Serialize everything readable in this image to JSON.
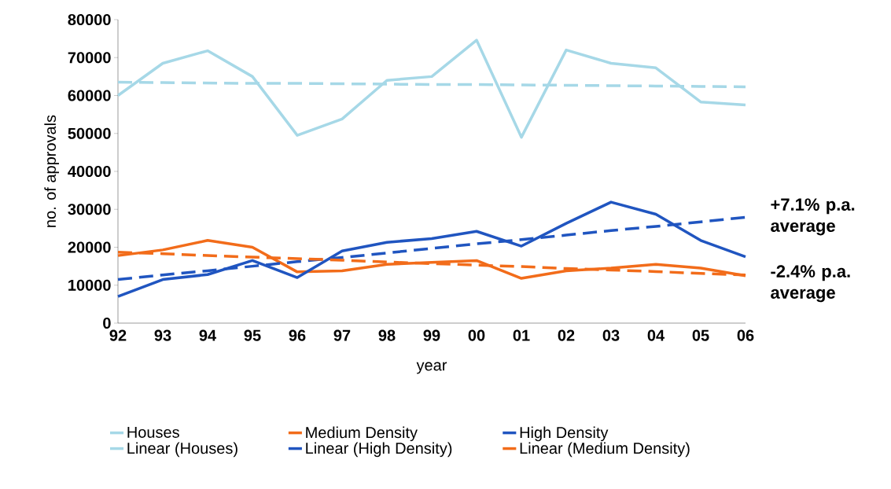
{
  "chart_data": {
    "type": "line",
    "xlabel": "year",
    "ylabel": "no. of approvals",
    "categories": [
      "92",
      "93",
      "94",
      "95",
      "96",
      "97",
      "98",
      "99",
      "00",
      "01",
      "02",
      "03",
      "04",
      "05",
      "06"
    ],
    "ylim": [
      0,
      80000
    ],
    "yticks": [
      0,
      10000,
      20000,
      30000,
      40000,
      50000,
      60000,
      70000,
      80000
    ],
    "legend": "bottom",
    "line_style": "solid",
    "series": [
      {
        "name": "Houses",
        "color": "#a6d8e7",
        "values": [
          60000,
          68500,
          71800,
          65000,
          49500,
          53800,
          64000,
          65000,
          74600,
          49000,
          72000,
          68500,
          67300,
          58300,
          57500
        ]
      },
      {
        "name": "Medium Density",
        "color": "#f26c1a",
        "values": [
          17800,
          19300,
          21800,
          20000,
          13500,
          13800,
          15500,
          16000,
          16500,
          11800,
          13800,
          14500,
          15500,
          14500,
          12500
        ]
      },
      {
        "name": "High Density",
        "color": "#2055c0",
        "values": [
          7000,
          11500,
          12800,
          16500,
          12000,
          19000,
          21300,
          22300,
          24200,
          20300,
          26300,
          31900,
          28700,
          21800,
          17500
        ]
      },
      {
        "name": "Linear (Houses)",
        "color": "#a6d8e7",
        "line_style": "dashed",
        "values": [
          63500,
          63400,
          63300,
          63200,
          63200,
          63100,
          63000,
          62900,
          62900,
          62800,
          62700,
          62600,
          62500,
          62400,
          62300
        ]
      },
      {
        "name": "Linear (High Density)",
        "color": "#2055c0",
        "line_style": "dashed",
        "values": [
          11500,
          12700,
          13800,
          15000,
          16200,
          17300,
          18500,
          19700,
          20900,
          22000,
          23200,
          24400,
          25500,
          26700,
          27900
        ]
      },
      {
        "name": "Linear (Medium Density)",
        "color": "#f26c1a",
        "line_style": "dashed",
        "values": [
          18700,
          18300,
          17800,
          17400,
          17000,
          16600,
          16100,
          15700,
          15300,
          14900,
          14400,
          14000,
          13600,
          13100,
          12700
        ]
      }
    ],
    "annotations": [
      "+7.1% p.a. average",
      "-2.4% p.a. average"
    ]
  }
}
